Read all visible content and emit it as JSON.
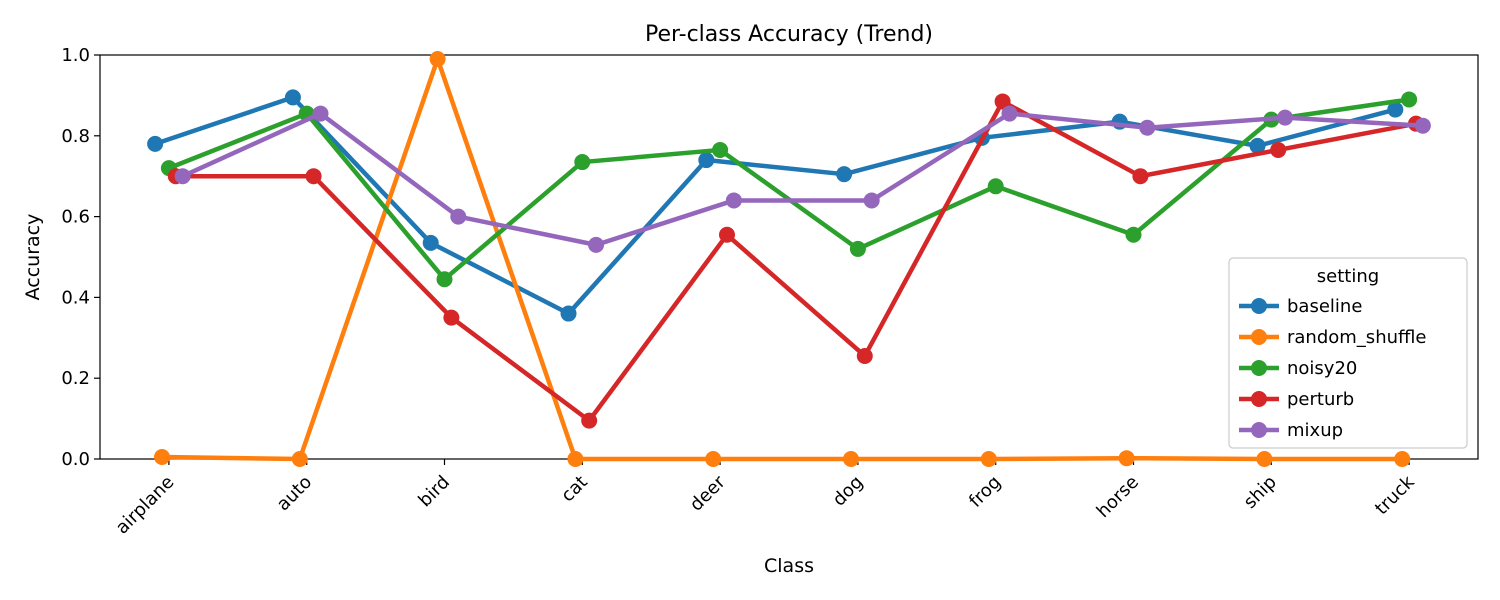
{
  "chart_data": {
    "type": "line",
    "title": "Per-class Accuracy (Trend)",
    "xlabel": "Class",
    "ylabel": "Accuracy",
    "ylim": [
      0,
      1
    ],
    "yticks": [
      "0.0",
      "0.2",
      "0.4",
      "0.6",
      "0.8",
      "1.0"
    ],
    "grid": false,
    "categories": [
      "airplane",
      "auto",
      "bird",
      "cat",
      "deer",
      "dog",
      "frog",
      "horse",
      "ship",
      "truck"
    ],
    "legend": {
      "title": "setting",
      "placement": "lower-right"
    },
    "series": [
      {
        "name": "baseline",
        "color": "#1f77b4",
        "values": [
          0.78,
          0.895,
          0.535,
          0.36,
          0.74,
          0.705,
          0.795,
          0.835,
          0.775,
          0.865
        ]
      },
      {
        "name": "random_shuffle",
        "color": "#ff7f0e",
        "values": [
          0.005,
          0.0,
          0.99,
          0.0,
          0.0,
          0.0,
          0.0,
          0.002,
          0.0,
          0.0
        ]
      },
      {
        "name": "noisy20",
        "color": "#2ca02c",
        "values": [
          0.72,
          0.855,
          0.445,
          0.735,
          0.765,
          0.52,
          0.675,
          0.555,
          0.84,
          0.89
        ]
      },
      {
        "name": "perturb",
        "color": "#d62728",
        "values": [
          0.7,
          0.7,
          0.35,
          0.095,
          0.555,
          0.255,
          0.885,
          0.7,
          0.765,
          0.83
        ]
      },
      {
        "name": "mixup",
        "color": "#9467bd",
        "values": [
          0.7,
          0.855,
          0.6,
          0.53,
          0.64,
          0.64,
          0.855,
          0.82,
          0.845,
          0.825
        ]
      }
    ]
  }
}
